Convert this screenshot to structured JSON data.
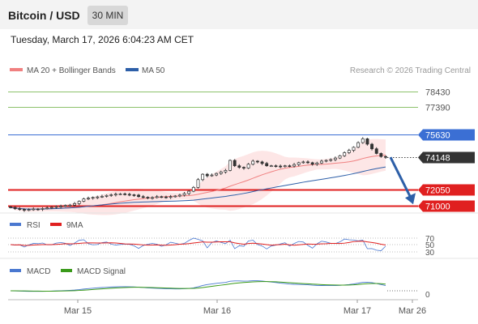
{
  "header": {
    "title": "Bitcoin / USD",
    "timeframe": "30 MIN"
  },
  "datetime": "Tuesday, March 17, 2026 6:04:23 AM CET",
  "legend": {
    "ma20": "MA 20 + Bollinger Bands",
    "ma50": "MA 50",
    "credit": "Research © 2026 Trading Central"
  },
  "colors": {
    "resistance_green": "#8dc26b",
    "pivot_blue": "#3b6fd4",
    "last_price": "#333333",
    "support_red": "#e02020",
    "arrow": "#2d5fa8",
    "ma20": "#f08080",
    "ma50": "#2d5fa8",
    "candle_up": "#333333",
    "candle_down": "#333333",
    "band_fill": "#fde0e0",
    "rsi": "#4a78d0",
    "rsi_ma": "#e02020",
    "macd": "#4a78d0",
    "macd_signal": "#3a9a1a"
  },
  "chart_data": [
    {
      "type": "candlestick",
      "title": "",
      "ylim": [
        70800,
        79200
      ],
      "x_ticks": [
        "Mar 15",
        "Mar 16",
        "Mar 17",
        "Mar 26"
      ],
      "levels": [
        {
          "value": 78430,
          "label": "78430",
          "kind": "resistance"
        },
        {
          "value": 77390,
          "label": "77390",
          "kind": "resistance"
        },
        {
          "value": 75630,
          "label": "75630",
          "kind": "pivot"
        },
        {
          "value": 74148,
          "label": "74148",
          "kind": "last"
        },
        {
          "value": 72050,
          "label": "72050",
          "kind": "support"
        },
        {
          "value": 71000,
          "label": "71000",
          "kind": "support"
        }
      ],
      "closes": [
        70900,
        70820,
        70780,
        70720,
        70760,
        70800,
        70780,
        70830,
        70870,
        70910,
        70950,
        70980,
        71030,
        71050,
        71150,
        71300,
        71450,
        71500,
        71550,
        71580,
        71620,
        71680,
        71720,
        71760,
        71780,
        71750,
        71720,
        71700,
        71600,
        71560,
        71520,
        71540,
        71600,
        71580,
        71560,
        71600,
        71640,
        71700,
        71800,
        71950,
        72200,
        72700,
        73050,
        72950,
        73000,
        73100,
        73200,
        73300,
        73950,
        73600,
        73500,
        73450,
        73700,
        73900,
        73850,
        73750,
        73600,
        73600,
        73580,
        73550,
        73600,
        73580,
        73680,
        73800,
        73850,
        73800,
        73700,
        73780,
        73900,
        73950,
        74000,
        74100,
        74250,
        74450,
        74600,
        74800,
        75100,
        75350,
        75000,
        74700,
        74400,
        74200,
        74148
      ],
      "forecast": {
        "from": 74148,
        "to": 71000
      }
    },
    {
      "type": "line",
      "title": "RSI",
      "series": [
        {
          "name": "RSI"
        },
        {
          "name": "9MA"
        }
      ],
      "y_ticks": [
        70,
        50,
        30
      ],
      "ylim": [
        0,
        100
      ]
    },
    {
      "type": "line",
      "title": "MACD",
      "series": [
        {
          "name": "MACD"
        },
        {
          "name": "MACD Signal"
        }
      ],
      "y_ticks": [
        0
      ]
    }
  ]
}
